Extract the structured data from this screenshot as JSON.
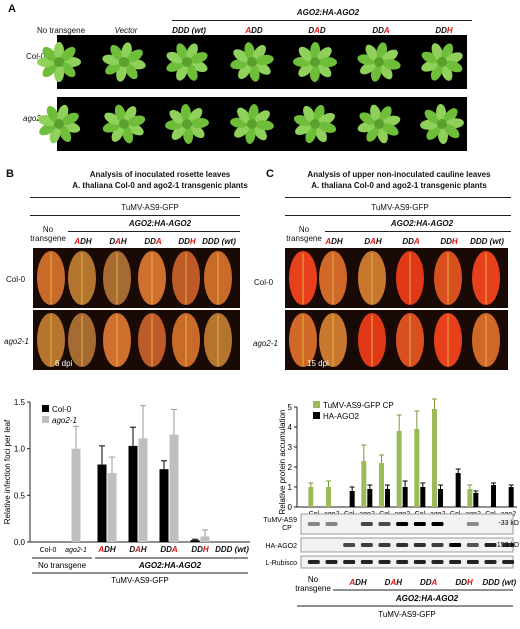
{
  "panelA": {
    "letter": "A",
    "header": "AGO2:HA-AGO2",
    "columns": [
      {
        "plain": "No transgene"
      },
      {
        "plain": "Vector",
        "italic": true
      },
      {
        "a": "DDD",
        "b": "",
        "c": "",
        "suffix": " (wt)"
      },
      {
        "a": "",
        "red": "A",
        "b": "DD"
      },
      {
        "a": "D",
        "red": "A",
        "b": "D"
      },
      {
        "a": "DD",
        "red": "A",
        "b": ""
      },
      {
        "a": "DD",
        "red": "H",
        "b": ""
      }
    ],
    "rows": [
      "Col-0",
      "ago2-1"
    ]
  },
  "panelB": {
    "letter": "B",
    "title1": "Analysis of inoculated rosette leaves",
    "title2": "A. thaliana Col-0 and ago2-1 transgenic plants",
    "virus": "TuMV-AS9-GFP",
    "header": "AGO2:HA-AGO2",
    "no_transgene": "No transgene",
    "cols": [
      {
        "a": "",
        "red": "A",
        "b": "DH"
      },
      {
        "a": "D",
        "red": "A",
        "b": "H"
      },
      {
        "a": "DD",
        "red": "A",
        "b": ""
      },
      {
        "a": "DD",
        "red": "H",
        "b": ""
      },
      {
        "a": "DDD (wt)",
        "red": "",
        "b": ""
      }
    ],
    "rows": [
      "Col-0",
      "ago2-1"
    ],
    "dpi": "6 dpi",
    "bottom_label_no": "No transgene",
    "bottom_label_ago": "AGO2:HA-AGO2",
    "bottom_virus": "TuMV-AS9-GFP"
  },
  "panelC": {
    "letter": "C",
    "title1": "Analysis of upper non-inoculated cauline leaves",
    "title2": "A. thaliana Col-0 and ago2-1 transgenic plants",
    "virus": "TuMV-AS9-GFP",
    "header": "AGO2:HA-AGO2",
    "no_transgene": "No transgene",
    "cols": [
      {
        "a": "",
        "red": "A",
        "b": "DH"
      },
      {
        "a": "D",
        "red": "A",
        "b": "H"
      },
      {
        "a": "DD",
        "red": "A",
        "b": ""
      },
      {
        "a": "DD",
        "red": "H",
        "b": ""
      },
      {
        "a": "DDD (wt)",
        "red": "",
        "b": ""
      }
    ],
    "rows": [
      "Col-0",
      "ago2-1"
    ],
    "dpi": "15 dpi",
    "blot_rows": [
      "TuMV-AS9 CP",
      "HA-AGO2",
      "L-Rubisco"
    ],
    "kd": [
      "-33 kD",
      "-153 kD"
    ],
    "bottom_label_no1": "No",
    "bottom_label_no2": "transgene",
    "bottom_label_ago": "AGO2:HA-AGO2",
    "bottom_virus": "TuMV-AS9-GFP"
  },
  "colors": {
    "col0": "#000000",
    "ago2": "#bfbfbf",
    "cp": "#9bbb59",
    "ha": "#000000",
    "mutation": "#dd1111"
  },
  "chart_data": [
    {
      "type": "bar",
      "ylabel": "Relative infection foci per leaf",
      "ylim": [
        0,
        1.5
      ],
      "yticks": [
        "0.0",
        "0.5",
        "1.0",
        "1.5"
      ],
      "categories": [
        "No transgene",
        "ADH",
        "DAH",
        "DDA",
        "DDH",
        "DDD (wt)"
      ],
      "xticks": [
        "Col-0",
        "ago2-1"
      ],
      "series": [
        {
          "name": "Col-0",
          "values": [
            0.0,
            0.83,
            1.03,
            0.78,
            0.02,
            0.0
          ],
          "errors": [
            0,
            0.2,
            0.2,
            0.09,
            0.01,
            0
          ]
        },
        {
          "name": "ago2-1",
          "values": [
            1.0,
            0.74,
            1.11,
            1.15,
            0.06,
            0.0
          ],
          "errors": [
            0.24,
            0.17,
            0.35,
            0.27,
            0.07,
            0
          ]
        }
      ]
    },
    {
      "type": "bar",
      "ylabel": "Relative protein accumulation",
      "ylim": [
        0,
        5
      ],
      "yticks": [
        "0",
        "1",
        "2",
        "3",
        "4",
        "5"
      ],
      "xticks": [
        "Col",
        "ago2",
        "Col",
        "ago2",
        "Col",
        "ago2",
        "Col",
        "ago2",
        "Col",
        "ago2",
        "Col",
        "ago2"
      ],
      "series": [
        {
          "name": "TuMV-AS9-GFP CP",
          "values": [
            1.0,
            1.0,
            0.0,
            2.3,
            2.2,
            3.8,
            3.9,
            4.9,
            0.0,
            0.9,
            0.0,
            0.0
          ],
          "errors": [
            0.2,
            0.3,
            0,
            0.8,
            0.4,
            0.8,
            0.9,
            0.5,
            0,
            0.2,
            0,
            0
          ]
        },
        {
          "name": "HA-AGO2",
          "values": [
            0.0,
            0.0,
            0.8,
            0.9,
            0.9,
            1.0,
            1.0,
            0.9,
            1.7,
            0.7,
            1.1,
            1.0
          ],
          "errors": [
            0,
            0,
            0.2,
            0.2,
            0.2,
            0.3,
            0.2,
            0.2,
            0.2,
            0.1,
            0.1,
            0.1
          ]
        }
      ]
    }
  ]
}
